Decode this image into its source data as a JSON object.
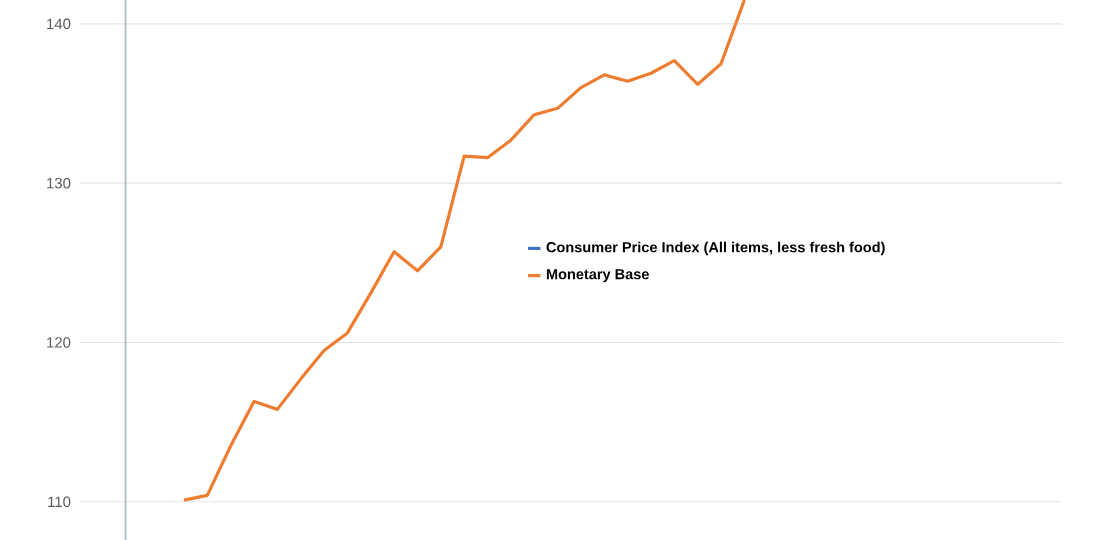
{
  "chart_data": {
    "type": "line",
    "categories": [
      null,
      null,
      null,
      null,
      null,
      null,
      null,
      null,
      null,
      null,
      null,
      null,
      null,
      null,
      null,
      null,
      null,
      null,
      null,
      null,
      null,
      null,
      null,
      null,
      null,
      null,
      null,
      null,
      null,
      null,
      null,
      null,
      null,
      null,
      null,
      null,
      null,
      null,
      null,
      null,
      null,
      null
    ],
    "series": [
      {
        "name": "Consumer Price Index (All items, less fresh food)",
        "color": "#4472c4",
        "values": [
          null,
          null,
          null,
          null,
          null,
          null,
          null,
          null,
          null,
          null,
          null,
          null,
          null,
          null,
          null,
          null,
          null,
          null,
          null,
          null,
          null,
          null,
          null,
          null,
          null,
          null,
          null,
          null,
          null,
          null,
          null,
          null,
          null,
          null,
          null,
          null,
          null,
          null,
          null,
          null,
          null,
          null
        ]
      },
      {
        "name": "Monetary Base",
        "color": "#ed7d31",
        "values": [
          null,
          null,
          null,
          null,
          110.1,
          110.4,
          113.5,
          116.3,
          115.8,
          117.7,
          119.5,
          120.6,
          123.1,
          125.7,
          124.5,
          126.0,
          131.7,
          131.6,
          132.7,
          134.3,
          134.7,
          136.0,
          136.8,
          136.4,
          136.9,
          137.7,
          136.2,
          137.5,
          141.5,
          null,
          null,
          null,
          null,
          null,
          null,
          null,
          null,
          null,
          null,
          null,
          null,
          null
        ]
      }
    ],
    "ylim": [
      107.6,
      141.5
    ],
    "yticks": [
      110,
      120,
      130,
      140
    ],
    "grid": "y",
    "legend": "right",
    "tick_labels": "y",
    "line_style": "solid",
    "marker": "none"
  }
}
